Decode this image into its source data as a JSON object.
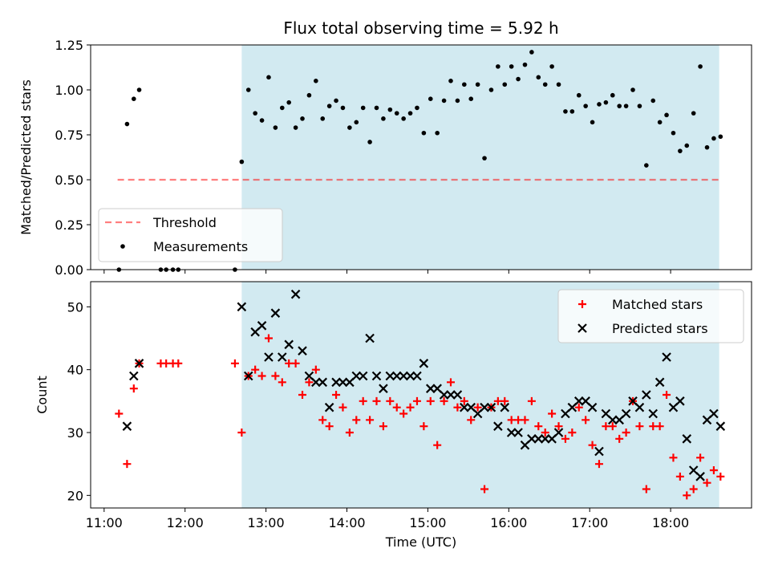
{
  "title": "Flux total observing time = 5.92 h",
  "colors": {
    "observing_window": "#add8e6",
    "threshold": "#ff0000",
    "measurements": "#000000",
    "matched": "#ff0000",
    "predicted": "#000000"
  },
  "chart_data": [
    {
      "type": "scatter",
      "panel": "top",
      "ylabel": "Matched/Predicted stars",
      "xlabel": "",
      "ylim": [
        0,
        1.25
      ],
      "yticks": [
        "0.00",
        "0.25",
        "0.50",
        "0.75",
        "1.00",
        "1.25"
      ],
      "xrange_hours": [
        "10:50",
        "19:00"
      ],
      "observing_window": [
        "12:42",
        "18:36"
      ],
      "threshold": {
        "value": 0.5,
        "from": "11:10",
        "to": "18:36"
      },
      "legend": {
        "placement": "lower-left",
        "entries": [
          "Threshold",
          "Measurements"
        ]
      },
      "series": [
        {
          "name": "Measurements",
          "points": [
            [
              "11:11",
              0.0
            ],
            [
              "11:17",
              0.81
            ],
            [
              "11:22",
              0.95
            ],
            [
              "11:26",
              1.0
            ],
            [
              "11:42",
              0.0
            ],
            [
              "11:46",
              0.0
            ],
            [
              "11:51",
              0.0
            ],
            [
              "11:55",
              0.0
            ],
            [
              "12:37",
              0.0
            ],
            [
              "12:42",
              0.6
            ],
            [
              "12:47",
              1.0
            ],
            [
              "12:52",
              0.87
            ],
            [
              "12:57",
              0.83
            ],
            [
              "13:02",
              1.07
            ],
            [
              "13:07",
              0.79
            ],
            [
              "13:12",
              0.9
            ],
            [
              "13:17",
              0.93
            ],
            [
              "13:22",
              0.79
            ],
            [
              "13:27",
              0.84
            ],
            [
              "13:32",
              0.97
            ],
            [
              "13:37",
              1.05
            ],
            [
              "13:42",
              0.84
            ],
            [
              "13:47",
              0.91
            ],
            [
              "13:52",
              0.94
            ],
            [
              "13:57",
              0.9
            ],
            [
              "14:02",
              0.79
            ],
            [
              "14:07",
              0.82
            ],
            [
              "14:12",
              0.9
            ],
            [
              "14:17",
              0.71
            ],
            [
              "14:22",
              0.9
            ],
            [
              "14:27",
              0.84
            ],
            [
              "14:32",
              0.89
            ],
            [
              "14:37",
              0.87
            ],
            [
              "14:42",
              0.84
            ],
            [
              "14:47",
              0.87
            ],
            [
              "14:52",
              0.9
            ],
            [
              "14:57",
              0.76
            ],
            [
              "15:02",
              0.95
            ],
            [
              "15:07",
              0.76
            ],
            [
              "15:12",
              0.94
            ],
            [
              "15:17",
              1.05
            ],
            [
              "15:22",
              0.94
            ],
            [
              "15:27",
              1.03
            ],
            [
              "15:32",
              0.95
            ],
            [
              "15:37",
              1.03
            ],
            [
              "15:42",
              0.62
            ],
            [
              "15:47",
              1.0
            ],
            [
              "15:52",
              1.13
            ],
            [
              "15:57",
              1.03
            ],
            [
              "16:02",
              1.13
            ],
            [
              "16:07",
              1.06
            ],
            [
              "16:12",
              1.14
            ],
            [
              "16:17",
              1.21
            ],
            [
              "16:22",
              1.07
            ],
            [
              "16:27",
              1.03
            ],
            [
              "16:32",
              1.13
            ],
            [
              "16:37",
              1.03
            ],
            [
              "16:42",
              0.88
            ],
            [
              "16:47",
              0.88
            ],
            [
              "16:52",
              0.97
            ],
            [
              "16:57",
              0.91
            ],
            [
              "17:02",
              0.82
            ],
            [
              "17:07",
              0.92
            ],
            [
              "17:12",
              0.93
            ],
            [
              "17:17",
              0.97
            ],
            [
              "17:22",
              0.91
            ],
            [
              "17:27",
              0.91
            ],
            [
              "17:32",
              1.0
            ],
            [
              "17:37",
              0.91
            ],
            [
              "17:42",
              0.58
            ],
            [
              "17:47",
              0.94
            ],
            [
              "17:52",
              0.82
            ],
            [
              "17:57",
              0.86
            ],
            [
              "18:02",
              0.76
            ],
            [
              "18:07",
              0.66
            ],
            [
              "18:12",
              0.69
            ],
            [
              "18:17",
              0.87
            ],
            [
              "18:22",
              1.13
            ],
            [
              "18:27",
              0.68
            ],
            [
              "18:32",
              0.73
            ],
            [
              "18:37",
              0.74
            ]
          ]
        }
      ]
    },
    {
      "type": "scatter",
      "panel": "bottom",
      "ylabel": "Count",
      "xlabel": "Time (UTC)",
      "ylim": [
        18,
        54
      ],
      "yticks": [
        20,
        30,
        40,
        50
      ],
      "xticks": [
        "11:00",
        "12:00",
        "13:00",
        "14:00",
        "15:00",
        "16:00",
        "17:00",
        "18:00"
      ],
      "xrange_hours": [
        "10:50",
        "19:00"
      ],
      "observing_window": [
        "12:42",
        "18:36"
      ],
      "legend": {
        "placement": "top-right",
        "entries": [
          "Matched stars",
          "Predicted stars"
        ]
      },
      "series": [
        {
          "name": "Matched stars",
          "marker": "+",
          "points": [
            [
              "11:11",
              33
            ],
            [
              "11:17",
              25
            ],
            [
              "11:22",
              37
            ],
            [
              "11:26",
              41
            ],
            [
              "11:42",
              41
            ],
            [
              "11:46",
              41
            ],
            [
              "11:51",
              41
            ],
            [
              "11:55",
              41
            ],
            [
              "12:37",
              41
            ],
            [
              "12:42",
              30
            ],
            [
              "12:47",
              39
            ],
            [
              "12:52",
              40
            ],
            [
              "12:57",
              39
            ],
            [
              "13:02",
              45
            ],
            [
              "13:07",
              39
            ],
            [
              "13:12",
              38
            ],
            [
              "13:17",
              41
            ],
            [
              "13:22",
              41
            ],
            [
              "13:27",
              36
            ],
            [
              "13:32",
              38
            ],
            [
              "13:37",
              40
            ],
            [
              "13:42",
              32
            ],
            [
              "13:47",
              31
            ],
            [
              "13:52",
              36
            ],
            [
              "13:57",
              34
            ],
            [
              "14:02",
              30
            ],
            [
              "14:07",
              32
            ],
            [
              "14:12",
              35
            ],
            [
              "14:17",
              32
            ],
            [
              "14:22",
              35
            ],
            [
              "14:27",
              31
            ],
            [
              "14:32",
              35
            ],
            [
              "14:37",
              34
            ],
            [
              "14:42",
              33
            ],
            [
              "14:47",
              34
            ],
            [
              "14:52",
              35
            ],
            [
              "14:57",
              31
            ],
            [
              "15:02",
              35
            ],
            [
              "15:07",
              28
            ],
            [
              "15:12",
              35
            ],
            [
              "15:17",
              38
            ],
            [
              "15:22",
              34
            ],
            [
              "15:27",
              35
            ],
            [
              "15:32",
              32
            ],
            [
              "15:37",
              34
            ],
            [
              "15:42",
              21
            ],
            [
              "15:47",
              34
            ],
            [
              "15:52",
              35
            ],
            [
              "15:57",
              35
            ],
            [
              "16:02",
              32
            ],
            [
              "16:07",
              32
            ],
            [
              "16:12",
              32
            ],
            [
              "16:17",
              35
            ],
            [
              "16:22",
              31
            ],
            [
              "16:27",
              30
            ],
            [
              "16:32",
              33
            ],
            [
              "16:37",
              31
            ],
            [
              "16:42",
              29
            ],
            [
              "16:47",
              30
            ],
            [
              "16:52",
              34
            ],
            [
              "16:57",
              32
            ],
            [
              "17:02",
              28
            ],
            [
              "17:07",
              25
            ],
            [
              "17:12",
              31
            ],
            [
              "17:17",
              31
            ],
            [
              "17:22",
              29
            ],
            [
              "17:27",
              30
            ],
            [
              "17:32",
              35
            ],
            [
              "17:37",
              31
            ],
            [
              "17:42",
              21
            ],
            [
              "17:47",
              31
            ],
            [
              "17:52",
              31
            ],
            [
              "17:57",
              36
            ],
            [
              "18:02",
              26
            ],
            [
              "18:07",
              23
            ],
            [
              "18:12",
              20
            ],
            [
              "18:17",
              21
            ],
            [
              "18:22",
              26
            ],
            [
              "18:27",
              22
            ],
            [
              "18:32",
              24
            ],
            [
              "18:37",
              23
            ]
          ]
        },
        {
          "name": "Predicted stars",
          "marker": "x",
          "points": [
            [
              "11:17",
              31
            ],
            [
              "11:22",
              39
            ],
            [
              "11:26",
              41
            ],
            [
              "12:42",
              50
            ],
            [
              "12:47",
              39
            ],
            [
              "12:52",
              46
            ],
            [
              "12:57",
              47
            ],
            [
              "13:02",
              42
            ],
            [
              "13:07",
              49
            ],
            [
              "13:12",
              42
            ],
            [
              "13:17",
              44
            ],
            [
              "13:22",
              52
            ],
            [
              "13:27",
              43
            ],
            [
              "13:32",
              39
            ],
            [
              "13:37",
              38
            ],
            [
              "13:42",
              38
            ],
            [
              "13:47",
              34
            ],
            [
              "13:52",
              38
            ],
            [
              "13:57",
              38
            ],
            [
              "14:02",
              38
            ],
            [
              "14:07",
              39
            ],
            [
              "14:12",
              39
            ],
            [
              "14:17",
              45
            ],
            [
              "14:22",
              39
            ],
            [
              "14:27",
              37
            ],
            [
              "14:32",
              39
            ],
            [
              "14:37",
              39
            ],
            [
              "14:42",
              39
            ],
            [
              "14:47",
              39
            ],
            [
              "14:52",
              39
            ],
            [
              "14:57",
              41
            ],
            [
              "15:02",
              37
            ],
            [
              "15:07",
              37
            ],
            [
              "15:12",
              36
            ],
            [
              "15:17",
              36
            ],
            [
              "15:22",
              36
            ],
            [
              "15:27",
              34
            ],
            [
              "15:32",
              34
            ],
            [
              "15:37",
              33
            ],
            [
              "15:42",
              34
            ],
            [
              "15:47",
              34
            ],
            [
              "15:52",
              31
            ],
            [
              "15:57",
              34
            ],
            [
              "16:02",
              30
            ],
            [
              "16:07",
              30
            ],
            [
              "16:12",
              28
            ],
            [
              "16:17",
              29
            ],
            [
              "16:22",
              29
            ],
            [
              "16:27",
              29
            ],
            [
              "16:32",
              29
            ],
            [
              "16:37",
              30
            ],
            [
              "16:42",
              33
            ],
            [
              "16:47",
              34
            ],
            [
              "16:52",
              35
            ],
            [
              "16:57",
              35
            ],
            [
              "17:02",
              34
            ],
            [
              "17:07",
              27
            ],
            [
              "17:12",
              33
            ],
            [
              "17:17",
              32
            ],
            [
              "17:22",
              32
            ],
            [
              "17:27",
              33
            ],
            [
              "17:32",
              35
            ],
            [
              "17:37",
              34
            ],
            [
              "17:42",
              36
            ],
            [
              "17:47",
              33
            ],
            [
              "17:52",
              38
            ],
            [
              "17:57",
              42
            ],
            [
              "18:02",
              34
            ],
            [
              "18:07",
              35
            ],
            [
              "18:12",
              29
            ],
            [
              "18:17",
              24
            ],
            [
              "18:22",
              23
            ],
            [
              "18:27",
              32
            ],
            [
              "18:32",
              33
            ],
            [
              "18:37",
              31
            ]
          ]
        }
      ]
    }
  ]
}
